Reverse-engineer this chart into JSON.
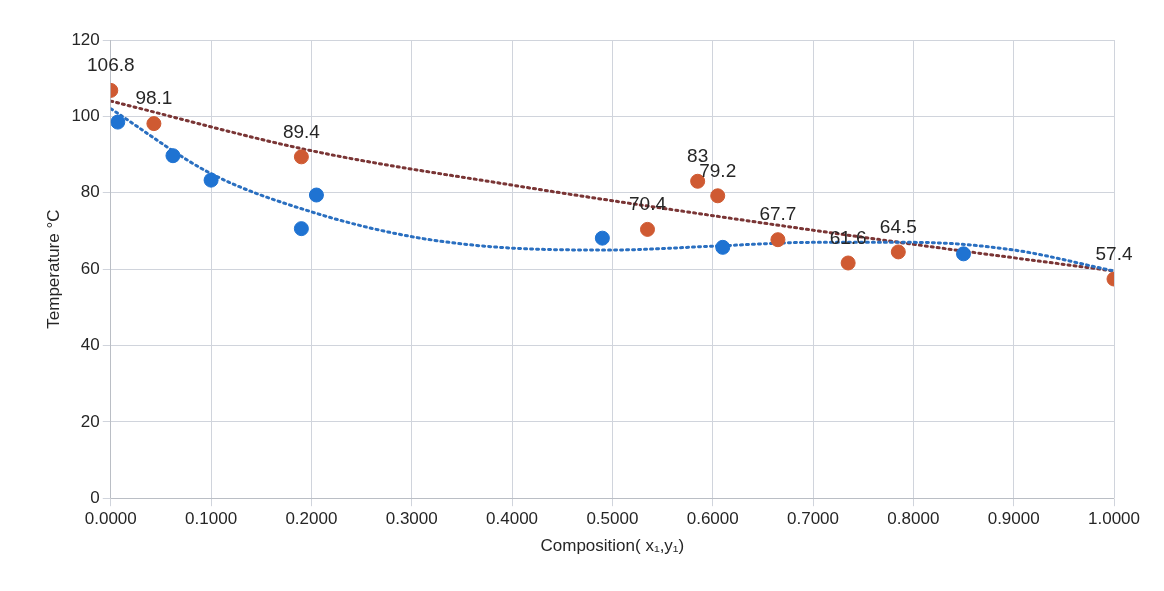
{
  "chart_data": {
    "type": "scatter",
    "xlabel": "Composition( x₁,y₁)",
    "ylabel": "Temperature °C",
    "xlim": [
      0,
      1
    ],
    "xticks": [
      {
        "value": 0,
        "label": "0.0000"
      },
      {
        "value": 0.1,
        "label": "0.1000"
      },
      {
        "value": 0.2,
        "label": "0.2000"
      },
      {
        "value": 0.3,
        "label": "0.3000"
      },
      {
        "value": 0.4,
        "label": "0.4000"
      },
      {
        "value": 0.5,
        "label": "0.5000"
      },
      {
        "value": 0.6,
        "label": "0.6000"
      },
      {
        "value": 0.7,
        "label": "0.7000"
      },
      {
        "value": 0.8,
        "label": "0.8000"
      },
      {
        "value": 0.9,
        "label": "0.9000"
      },
      {
        "value": 1,
        "label": "1.0000"
      }
    ],
    "ylim": [
      0,
      120
    ],
    "yticks": [
      0,
      20,
      40,
      60,
      80,
      100,
      120
    ],
    "grid": true,
    "marker": "circle",
    "series": [
      {
        "color": "#1f73d2",
        "x": [
          0.007,
          0.062,
          0.1,
          0.19,
          0.205,
          0.49,
          0.61,
          0.85
        ],
        "values": [
          98.5,
          89.7,
          83.3,
          70.6,
          79.4,
          68.1,
          65.7,
          64
        ]
      },
      {
        "color": "#cf5a32",
        "x": [
          0,
          0.043,
          0.19,
          0.535,
          0.585,
          0.605,
          0.665,
          0.735,
          0.785,
          1.0
        ],
        "values": [
          106.8,
          98.1,
          89.4,
          70.4,
          83,
          79.2,
          67.7,
          61.6,
          64.5,
          57.4
        ],
        "value_labels": [
          "106.8",
          "98.1",
          "89.4",
          "70.4",
          "83",
          "79.2",
          "67.7",
          "61.6",
          "64.5",
          "57.4"
        ]
      },
      {
        "type": "line",
        "color": "#2a6fc0",
        "line_style": "dotted",
        "marker": "none",
        "x": [
          0,
          0.1,
          0.2,
          0.3,
          0.4,
          0.5,
          0.6,
          0.7,
          0.8,
          0.9,
          1.0
        ],
        "values": [
          102,
          85,
          75,
          68.5,
          65.5,
          65,
          66,
          67,
          67,
          65,
          59.5
        ]
      },
      {
        "type": "line",
        "color": "#7a3535",
        "line_style": "dotted",
        "marker": "none",
        "x": [
          0,
          0.2,
          0.4,
          0.6,
          0.8,
          1.0
        ],
        "values": [
          104,
          91,
          82,
          74,
          66.5,
          59.5
        ]
      }
    ]
  }
}
